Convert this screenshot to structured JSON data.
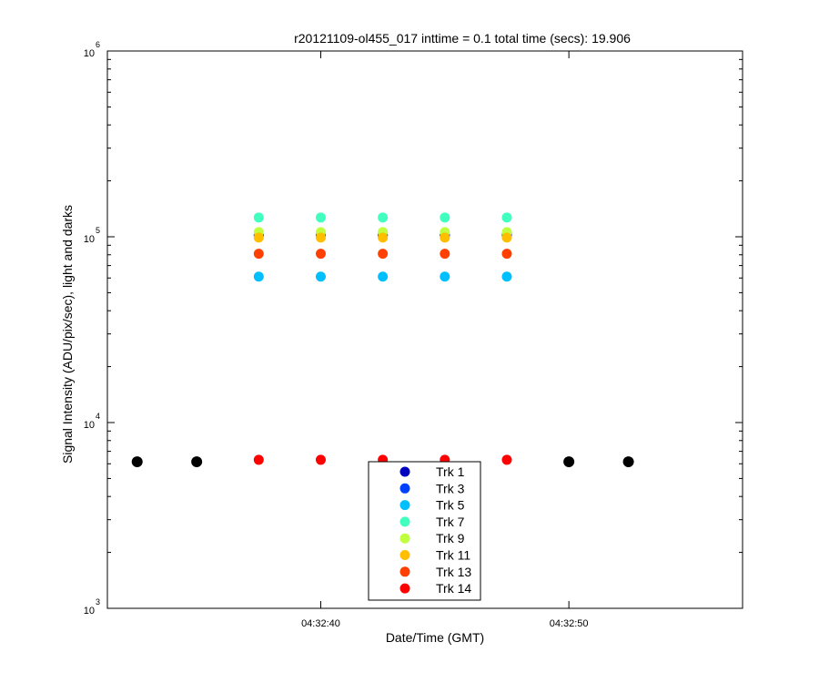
{
  "chart_data": {
    "type": "scatter",
    "title": "r20121109-ol455_017 inttime = 0.1 total time (secs): 19.906",
    "xlabel": "Date/Time (GMT)",
    "ylabel": "Signal Intensity (ADU/pix/sec), light and darks",
    "yscale": "log",
    "ylim": [
      1000,
      1000000
    ],
    "xlim": [
      "04:32:31.4",
      "04:32:57.0"
    ],
    "xticks": [
      "04:32:40",
      "04:32:50"
    ],
    "yticks": [
      {
        "value": 1000,
        "base": "10",
        "exp": "3"
      },
      {
        "value": 10000,
        "base": "10",
        "exp": "4"
      },
      {
        "value": 100000,
        "base": "10",
        "exp": "5"
      },
      {
        "value": 1000000,
        "base": "10",
        "exp": "6"
      }
    ],
    "grid": false,
    "legend_position": "bottom-center",
    "light_times": [
      "04:32:37.5",
      "04:32:40.0",
      "04:32:42.5",
      "04:32:45.0",
      "04:32:47.5"
    ],
    "series": [
      {
        "name": "Trk 1",
        "color": "#0000BF",
        "values": [
          102000,
          102000,
          102000,
          102000,
          102000
        ]
      },
      {
        "name": "Trk 3",
        "color": "#0040FF",
        "values": [
          102000,
          102000,
          102000,
          102000,
          102000
        ]
      },
      {
        "name": "Trk 5",
        "color": "#00BFFF",
        "values": [
          61000,
          61000,
          61000,
          61000,
          61000
        ]
      },
      {
        "name": "Trk 7",
        "color": "#40FFBF",
        "values": [
          127000,
          127000,
          127000,
          127000,
          127000
        ]
      },
      {
        "name": "Trk 9",
        "color": "#BFFF40",
        "values": [
          106000,
          106000,
          106000,
          106000,
          106000
        ]
      },
      {
        "name": "Trk 11",
        "color": "#FFBF00",
        "values": [
          99000,
          99000,
          99000,
          99000,
          99000
        ]
      },
      {
        "name": "Trk 13",
        "color": "#FF4000",
        "values": [
          81000,
          81000,
          81000,
          81000,
          81000
        ]
      },
      {
        "name": "Trk 14",
        "color": "#FF0000",
        "values": [
          6300,
          6300,
          6300,
          6300,
          6300
        ]
      }
    ],
    "darks": {
      "color": "#000000",
      "times": [
        "04:32:32.6",
        "04:32:35.0",
        "04:32:50.0",
        "04:32:52.4"
      ],
      "value": 6150
    }
  }
}
